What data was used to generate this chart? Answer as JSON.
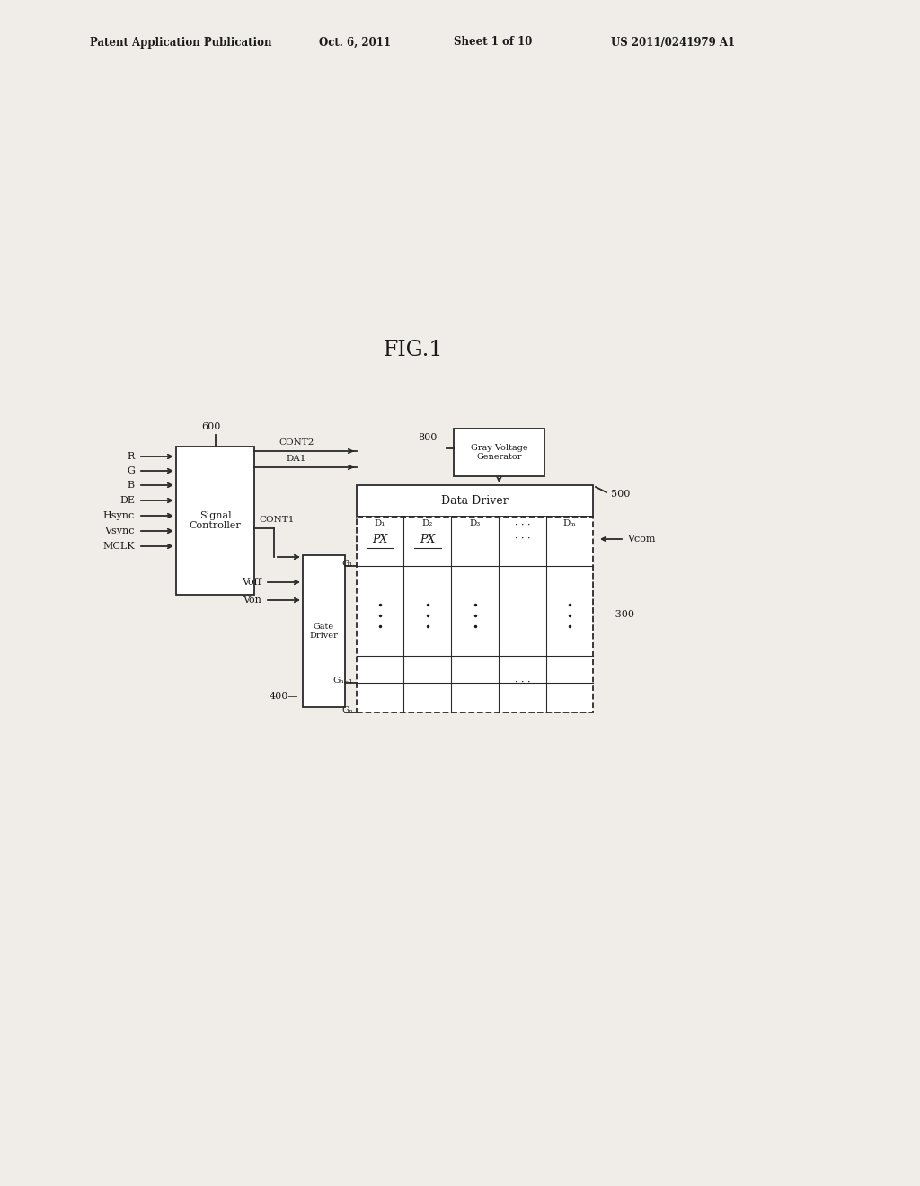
{
  "bg_color": "#f0ede8",
  "line_color": "#2a2a2a",
  "text_color": "#1a1a1a",
  "fig_label": "FIG.1",
  "title_header": "Patent Application Publication",
  "title_date": "Oct. 6, 2011",
  "title_sheet": "Sheet 1 of 10",
  "title_patent": "US 2011/0241979 A1",
  "signal_controller_label": "Signal\nController",
  "signal_controller_ref": "600",
  "gate_driver_label": "Gate\nDriver",
  "gate_driver_ref": "400",
  "data_driver_label": "Data Driver",
  "data_driver_ref": "500",
  "gray_voltage_label": "Gray Voltage\nGenerator",
  "gray_voltage_ref": "800",
  "panel_ref": "300",
  "vcom_label": "Vcom",
  "input_signals": [
    "R",
    "G",
    "B",
    "DE",
    "Hsync",
    "Vsync",
    "MCLK"
  ],
  "gate_inputs": [
    "Voff",
    "Von"
  ],
  "cont2_label": "CONT2",
  "dat_label": "DA1",
  "cont1_label": "CONT1",
  "g1_label": "G₁",
  "gn1_label": "Gₙ₋₁",
  "gn_label": "Gₙ",
  "d_labels": [
    "D₁",
    "D₂",
    "D₃",
    "···",
    "Dₘ"
  ],
  "px_label": "PX",
  "header_font_size": 8.5,
  "fig_label_font_size": 17,
  "label_font_size": 8,
  "small_font_size": 7.5,
  "tiny_font_size": 7
}
